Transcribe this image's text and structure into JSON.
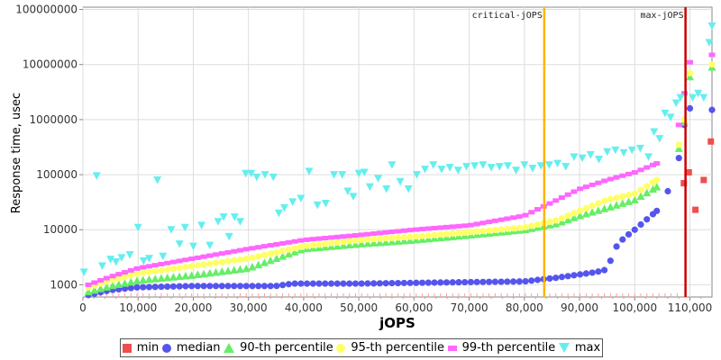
{
  "chart_data": {
    "type": "scatter",
    "xlabel": "jOPS",
    "ylabel": "Response time, usec",
    "x_ticks": [
      "0",
      "10,000",
      "20,000",
      "30,000",
      "40,000",
      "50,000",
      "60,000",
      "70,000",
      "80,000",
      "90,000",
      "100,000",
      "110,000"
    ],
    "y_ticks": [
      "1000",
      "10000",
      "100000",
      "1000000",
      "10000000",
      "100000000"
    ],
    "xlim": [
      0,
      114000
    ],
    "ylim": [
      600,
      110000000
    ],
    "y_scale": "log",
    "grid": true,
    "legend": "bottom",
    "markers": [
      {
        "label": "critical-jOPS",
        "x": 83600,
        "color": "#ffb400"
      },
      {
        "label": "max-jOPS",
        "x": 109200,
        "color": "#cc0000"
      }
    ],
    "series": [
      {
        "name": "min",
        "color": "#f04d4d",
        "shape": "square",
        "points": [
          [
            108900,
            70000
          ],
          [
            109800,
            110000
          ],
          [
            111000,
            23000
          ],
          [
            112500,
            80000
          ],
          [
            113800,
            400000
          ]
        ]
      },
      {
        "name": "median",
        "color": "#5555ee",
        "shape": "circle",
        "anchors": [
          [
            1000,
            650
          ],
          [
            5000,
            800
          ],
          [
            10000,
            900
          ],
          [
            20000,
            950
          ],
          [
            30000,
            950
          ],
          [
            35000,
            950
          ],
          [
            38000,
            1050
          ],
          [
            50000,
            1050
          ],
          [
            65000,
            1100
          ],
          [
            80000,
            1150
          ],
          [
            86000,
            1350
          ],
          [
            93000,
            1700
          ],
          [
            95000,
            1900
          ],
          [
            96500,
            4700
          ],
          [
            98000,
            7000
          ],
          [
            100000,
            10000
          ],
          [
            104000,
            22000
          ],
          [
            106000,
            50000
          ],
          [
            108000,
            200000
          ],
          [
            109000,
            800000
          ],
          [
            110000,
            1600000
          ],
          [
            114000,
            1500000
          ]
        ]
      },
      {
        "name": "90-th percentile",
        "color": "#66ee66",
        "shape": "triangle-up",
        "anchors": [
          [
            1000,
            750
          ],
          [
            5000,
            950
          ],
          [
            10000,
            1200
          ],
          [
            20000,
            1500
          ],
          [
            30000,
            2000
          ],
          [
            35000,
            3000
          ],
          [
            40000,
            4500
          ],
          [
            50000,
            5500
          ],
          [
            60000,
            6500
          ],
          [
            70000,
            8000
          ],
          [
            80000,
            10000
          ],
          [
            86000,
            13000
          ],
          [
            90000,
            18000
          ],
          [
            95000,
            25000
          ],
          [
            100000,
            35000
          ],
          [
            104000,
            60000
          ],
          [
            108000,
            300000
          ],
          [
            109000,
            900000
          ],
          [
            110000,
            6000000
          ],
          [
            114000,
            9000000
          ]
        ]
      },
      {
        "name": "95-th percentile",
        "color": "#ffff66",
        "shape": "circle",
        "anchors": [
          [
            1000,
            900
          ],
          [
            5000,
            1200
          ],
          [
            10000,
            1600
          ],
          [
            20000,
            2200
          ],
          [
            30000,
            3000
          ],
          [
            40000,
            5000
          ],
          [
            50000,
            6500
          ],
          [
            60000,
            7500
          ],
          [
            70000,
            9000
          ],
          [
            80000,
            11000
          ],
          [
            86000,
            15000
          ],
          [
            90000,
            22000
          ],
          [
            95000,
            35000
          ],
          [
            100000,
            45000
          ],
          [
            104000,
            80000
          ],
          [
            108000,
            350000
          ],
          [
            109000,
            1000000
          ],
          [
            110000,
            7000000
          ],
          [
            114000,
            10000000
          ]
        ]
      },
      {
        "name": "99-th percentile",
        "color": "#ff66ff",
        "shape": "square",
        "anchors": [
          [
            1000,
            1000
          ],
          [
            5000,
            1400
          ],
          [
            10000,
            2000
          ],
          [
            20000,
            3000
          ],
          [
            30000,
            4500
          ],
          [
            40000,
            6500
          ],
          [
            50000,
            8000
          ],
          [
            60000,
            10000
          ],
          [
            70000,
            12000
          ],
          [
            80000,
            18000
          ],
          [
            86000,
            35000
          ],
          [
            90000,
            55000
          ],
          [
            95000,
            80000
          ],
          [
            100000,
            110000
          ],
          [
            104000,
            160000
          ],
          [
            108000,
            800000
          ],
          [
            109000,
            3000000
          ],
          [
            110000,
            11000000
          ],
          [
            114000,
            15000000
          ]
        ]
      },
      {
        "name": "max",
        "color": "#66eeee",
        "shape": "triangle-down",
        "points": [
          [
            200,
            1700
          ],
          [
            2500,
            95000
          ],
          [
            3500,
            2200
          ],
          [
            5000,
            2900
          ],
          [
            6000,
            2600
          ],
          [
            7000,
            3100
          ],
          [
            8500,
            3500
          ],
          [
            10000,
            11000
          ],
          [
            11000,
            2700
          ],
          [
            12000,
            3000
          ],
          [
            13500,
            80000
          ],
          [
            14500,
            3300
          ],
          [
            16000,
            10000
          ],
          [
            17500,
            5500
          ],
          [
            18500,
            11000
          ],
          [
            20000,
            5000
          ],
          [
            21500,
            12000
          ],
          [
            23000,
            5200
          ],
          [
            24500,
            14000
          ],
          [
            25500,
            17000
          ],
          [
            26500,
            7500
          ],
          [
            27500,
            17000
          ],
          [
            28500,
            14000
          ],
          [
            29500,
            105000
          ],
          [
            30500,
            105000
          ],
          [
            31500,
            90000
          ],
          [
            33000,
            100000
          ],
          [
            34500,
            90000
          ],
          [
            35500,
            20000
          ],
          [
            36500,
            25000
          ],
          [
            38000,
            32000
          ],
          [
            39500,
            37000
          ],
          [
            41000,
            115000
          ],
          [
            42500,
            28000
          ],
          [
            44000,
            30000
          ],
          [
            45500,
            100000
          ],
          [
            47000,
            100000
          ],
          [
            48000,
            50000
          ],
          [
            49000,
            40000
          ],
          [
            50000,
            105000
          ],
          [
            51000,
            110000
          ],
          [
            52000,
            60000
          ],
          [
            53500,
            85000
          ],
          [
            55000,
            55000
          ],
          [
            56000,
            150000
          ],
          [
            57500,
            75000
          ],
          [
            59000,
            55000
          ],
          [
            60500,
            100000
          ],
          [
            62000,
            125000
          ],
          [
            63500,
            150000
          ],
          [
            65000,
            125000
          ],
          [
            66500,
            135000
          ],
          [
            68000,
            120000
          ],
          [
            69500,
            140000
          ],
          [
            71000,
            145000
          ],
          [
            72500,
            150000
          ],
          [
            74000,
            135000
          ],
          [
            75500,
            140000
          ],
          [
            77000,
            145000
          ],
          [
            78500,
            120000
          ],
          [
            80000,
            150000
          ],
          [
            81500,
            130000
          ],
          [
            83000,
            145000
          ],
          [
            84500,
            150000
          ],
          [
            86000,
            160000
          ],
          [
            87500,
            140000
          ],
          [
            89000,
            210000
          ],
          [
            90500,
            200000
          ],
          [
            92000,
            230000
          ],
          [
            93500,
            190000
          ],
          [
            95000,
            260000
          ],
          [
            96500,
            280000
          ],
          [
            98000,
            250000
          ],
          [
            99500,
            280000
          ],
          [
            101000,
            300000
          ],
          [
            102500,
            210000
          ],
          [
            103500,
            600000
          ],
          [
            104500,
            450000
          ],
          [
            105500,
            1300000
          ],
          [
            106500,
            1100000
          ],
          [
            107500,
            2000000
          ],
          [
            108300,
            2500000
          ],
          [
            110500,
            2500000
          ],
          [
            111500,
            3000000
          ],
          [
            112500,
            2500000
          ],
          [
            113500,
            25000000
          ],
          [
            114000,
            50000000
          ]
        ]
      }
    ]
  },
  "legend": {
    "items": [
      "min",
      "median",
      "90-th percentile",
      "95-th percentile",
      "99-th percentile",
      "max"
    ]
  }
}
